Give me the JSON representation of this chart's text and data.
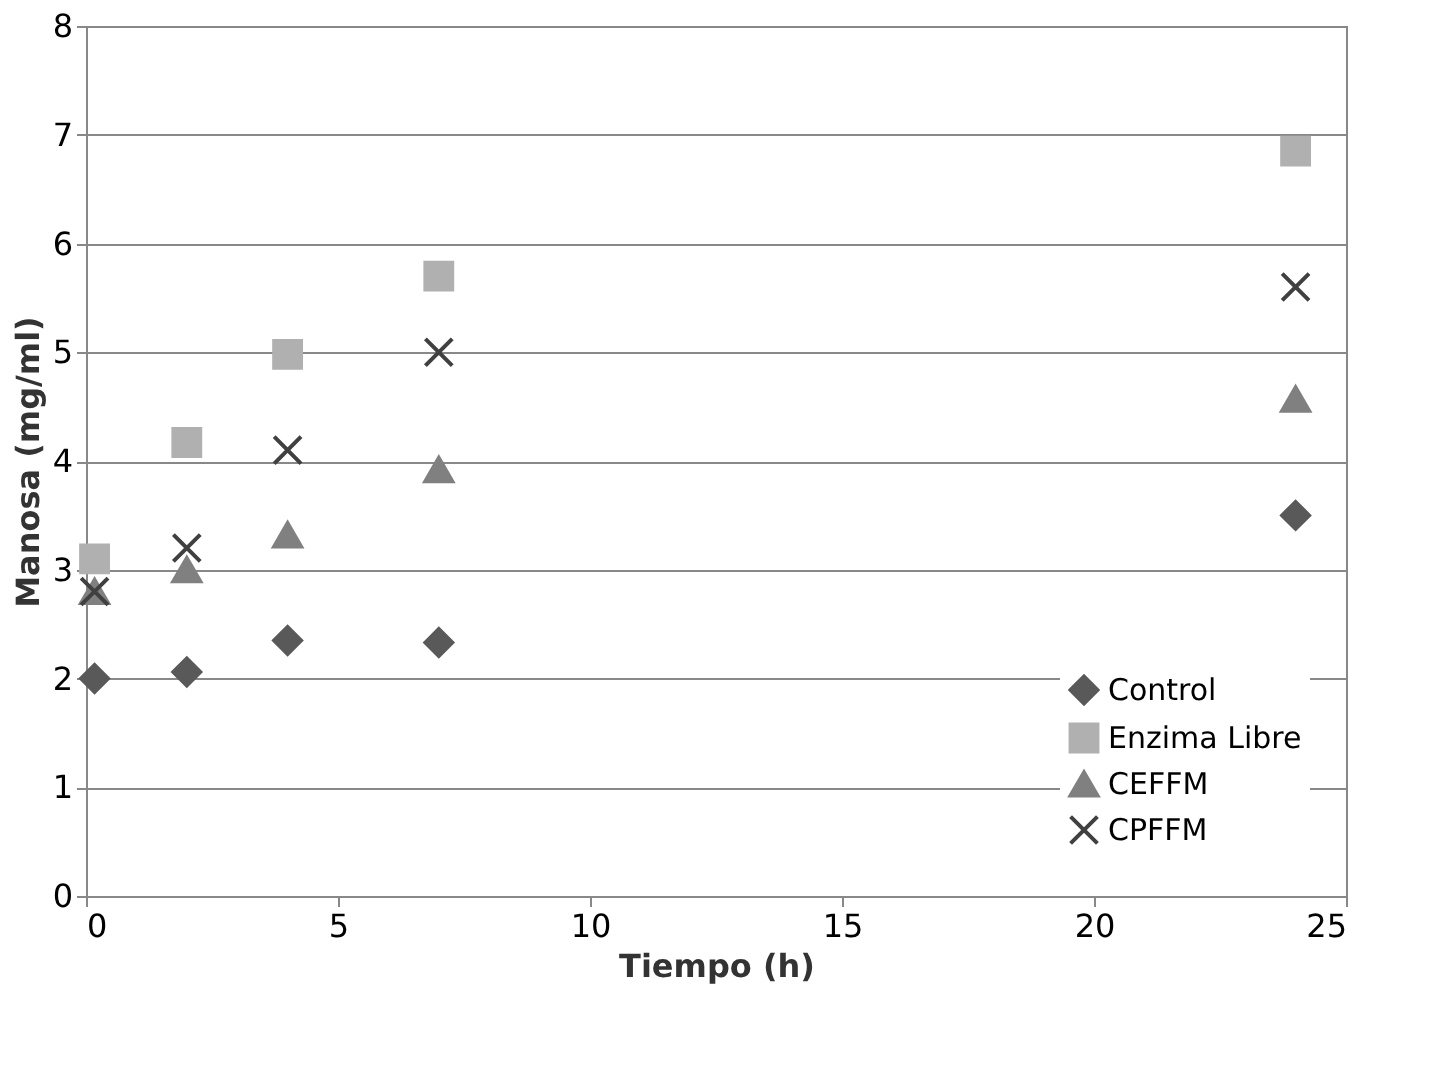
{
  "chart_data": {
    "type": "scatter",
    "xlabel": "Tiempo (h)",
    "ylabel": "Manosa (mg/ml)",
    "x": [
      0.17,
      2,
      4,
      7,
      24
    ],
    "series": [
      {
        "name": "Control",
        "color": "#595959",
        "marker": "diamond",
        "values": [
          2.0,
          2.06,
          2.35,
          2.33,
          3.5
        ]
      },
      {
        "name": "Enzima Libre",
        "color": "#b0b0b0",
        "marker": "square",
        "values": [
          3.1,
          4.17,
          4.98,
          5.7,
          6.85
        ]
      },
      {
        "name": "CEFFM",
        "color": "#808080",
        "marker": "triangle",
        "values": [
          2.8,
          3.0,
          3.32,
          3.92,
          4.57
        ]
      },
      {
        "name": "CPFFM",
        "color": "#404040",
        "marker": "cross",
        "values": [
          2.8,
          3.2,
          4.1,
          5.0,
          5.6
        ]
      }
    ],
    "xlim": [
      0,
      25
    ],
    "xticks": [
      0,
      5,
      10,
      15,
      20,
      25
    ],
    "ylim": [
      0,
      8
    ],
    "yticks": [
      0,
      1,
      2,
      3,
      4,
      5,
      6,
      7,
      8
    ],
    "grid": "y",
    "legend": "bottom right"
  }
}
